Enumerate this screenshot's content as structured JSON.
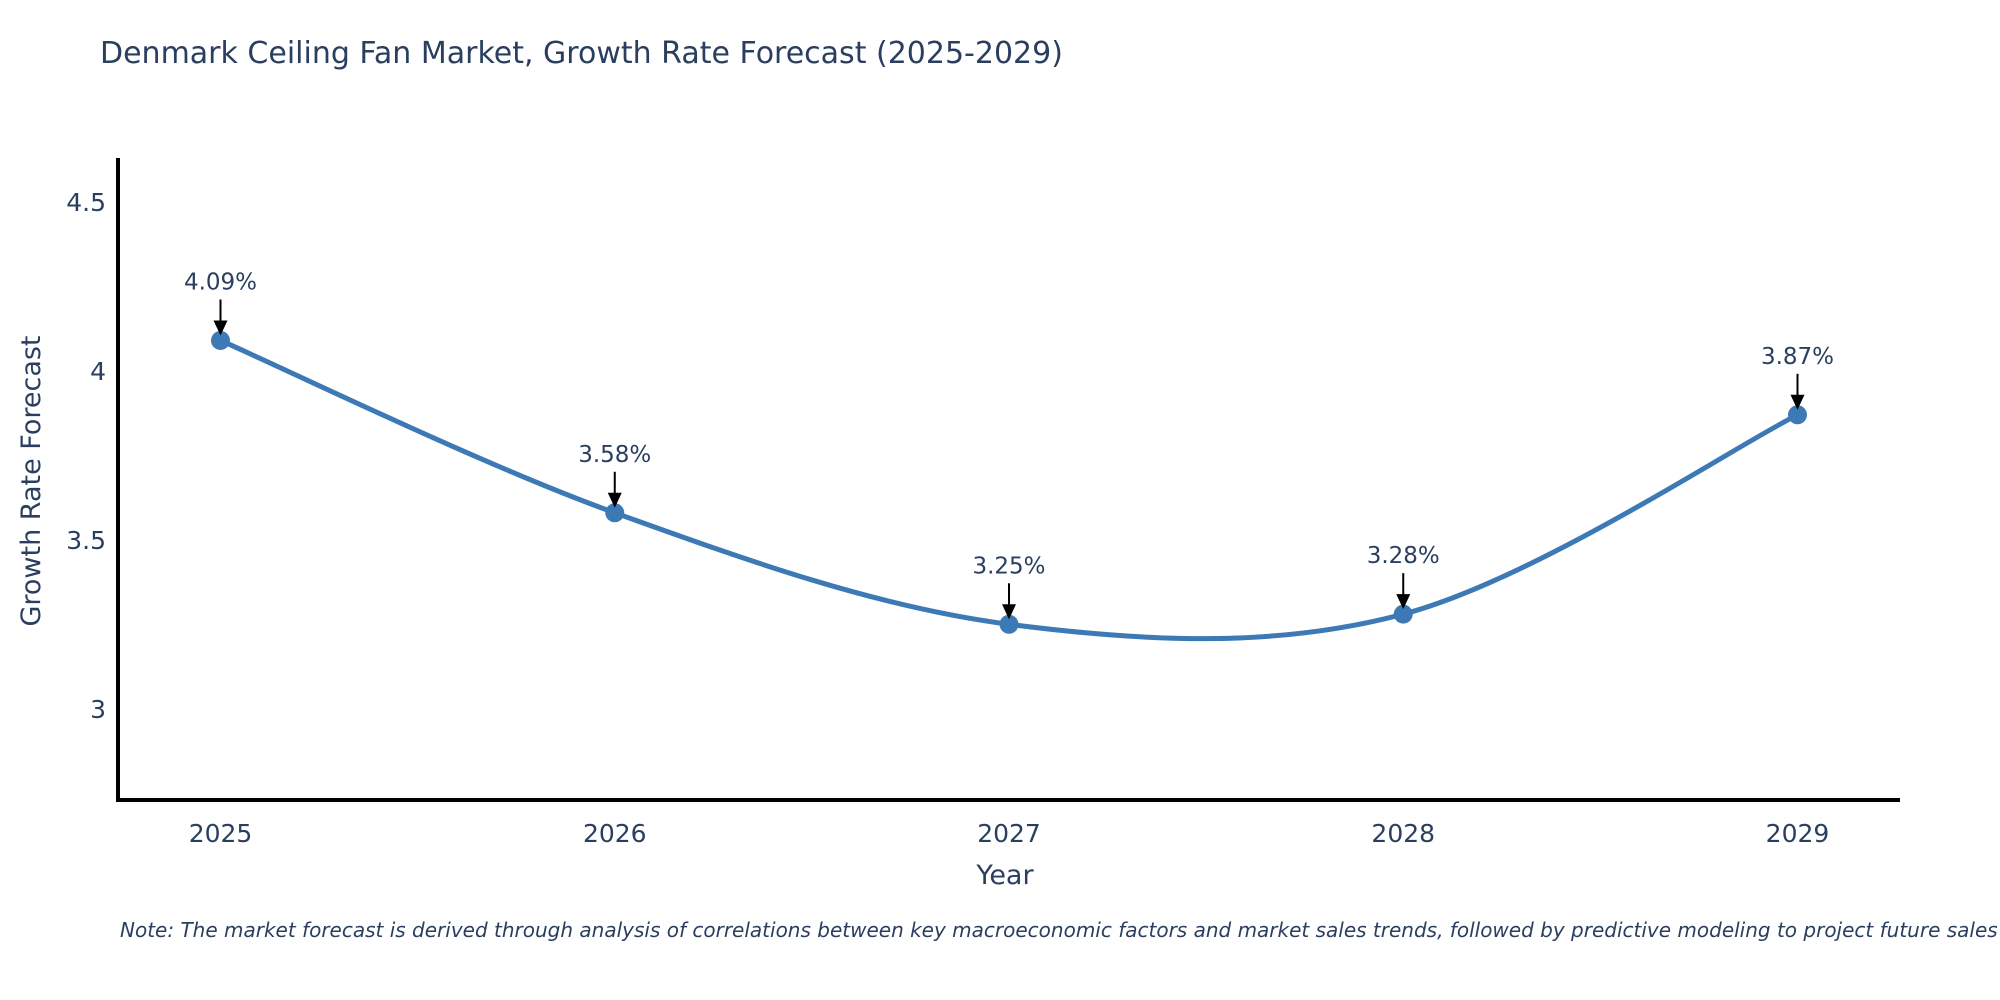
{
  "title": "Denmark Ceiling Fan Market, Growth Rate Forecast (2025-2029)",
  "note": "Note: The market forecast is derived through analysis of correlations between key macroeconomic factors and market sales trends, followed by predictive modeling to project future sales",
  "chart_data": {
    "type": "line",
    "line_shape": "spline",
    "title": "Denmark Ceiling Fan Market, Growth Rate Forecast (2025-2029)",
    "xlabel": "Year",
    "ylabel": "Growth Rate Forecast",
    "x": [
      2025,
      2026,
      2027,
      2028,
      2029
    ],
    "y": [
      4.09,
      3.58,
      3.25,
      3.28,
      3.87
    ],
    "point_labels": [
      "4.09%",
      "3.58%",
      "3.25%",
      "3.28%",
      "3.87%"
    ],
    "x_tick_labels": [
      "2025",
      "2026",
      "2027",
      "2028",
      "2029"
    ],
    "y_tick_values": [
      4.5,
      4,
      3.5,
      3
    ],
    "y_tick_labels": [
      "4.5",
      "4",
      "3.5",
      "3"
    ],
    "xlim": [
      2024.74,
      2029.26
    ],
    "ylim": [
      2.73,
      4.63
    ],
    "grid": false,
    "legend_position": "none",
    "annotation_style": "value label with down arrow to marker",
    "colors": {
      "line": "#3d7ab5",
      "marker": "#3d7ab5",
      "text": "#2a3f5f",
      "axis": "#000000",
      "arrow": "#000000",
      "background": "#ffffff"
    }
  }
}
